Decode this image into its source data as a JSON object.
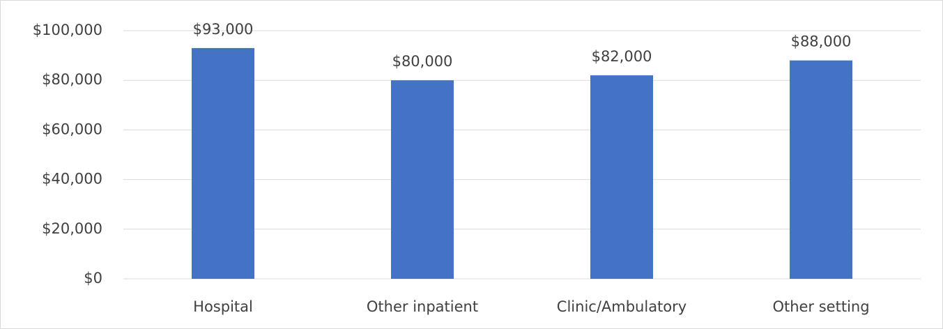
{
  "chart_data": {
    "type": "bar",
    "categories": [
      "Hospital",
      "Other inpatient",
      "Clinic/Ambulatory",
      "Other setting"
    ],
    "values": [
      93000,
      80000,
      82000,
      88000
    ],
    "value_labels": [
      "$93,000",
      "$80,000",
      "$82,000",
      "$88,000"
    ],
    "color": "#4472c4",
    "ylim": [
      0,
      100000
    ],
    "yticks": [
      {
        "value": 0,
        "label": "$0"
      },
      {
        "value": 20000,
        "label": "$20,000"
      },
      {
        "value": 40000,
        "label": "$40,000"
      },
      {
        "value": 60000,
        "label": "$60,000"
      },
      {
        "value": 80000,
        "label": "$80,000"
      },
      {
        "value": 100000,
        "label": "$100,000"
      }
    ],
    "grid": true
  }
}
